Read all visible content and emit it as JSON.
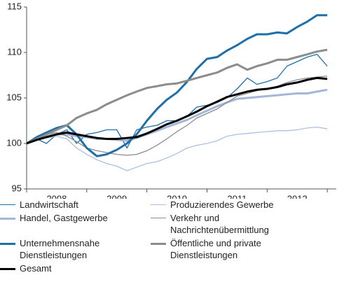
{
  "chart_data": {
    "type": "line",
    "x": [
      2008,
      2008.17,
      2008.33,
      2008.5,
      2008.67,
      2008.83,
      2009,
      2009.17,
      2009.33,
      2009.5,
      2009.67,
      2009.83,
      2010,
      2010.17,
      2010.33,
      2010.5,
      2010.67,
      2010.83,
      2011,
      2011.17,
      2011.33,
      2011.5,
      2011.67,
      2011.83,
      2012,
      2012.17,
      2012.33,
      2012.5,
      2012.67,
      2012.83,
      2013
    ],
    "xlim": [
      2008,
      2013.15
    ],
    "xticks": [
      {
        "value": 2008.5,
        "label": "2008"
      },
      {
        "value": 2009.5,
        "label": "2009"
      },
      {
        "value": 2010.5,
        "label": "2010"
      },
      {
        "value": 2011.5,
        "label": "2011"
      },
      {
        "value": 2012.5,
        "label": "2012"
      }
    ],
    "xminorticks": [
      2008,
      2009,
      2010,
      2011,
      2012,
      2013
    ],
    "ylim": [
      95,
      115
    ],
    "yticks": [
      95,
      100,
      105,
      110,
      115
    ],
    "grid": false,
    "series": [
      {
        "name": "Landwirtschaft",
        "color": "#1f6fa8",
        "line_width": 1.3,
        "values": [
          100,
          100.5,
          100,
          101,
          101.5,
          100,
          101,
          101.2,
          101.5,
          101.5,
          99.5,
          101.5,
          101.8,
          102,
          102.5,
          102.5,
          103,
          104,
          104.2,
          104.5,
          105,
          106,
          107.2,
          106.5,
          106.8,
          107.2,
          108.5,
          109,
          109.5,
          109.8,
          108.5
        ]
      },
      {
        "name": "Produzierendes Gewerbe",
        "color": "#a9c0e4",
        "line_width": 1.3,
        "values": [
          100,
          100.4,
          100.6,
          100.8,
          100.5,
          99.5,
          98.8,
          98.2,
          97.8,
          97.5,
          97.0,
          97.4,
          97.8,
          98.0,
          98.4,
          98.9,
          99.5,
          99.8,
          100.0,
          100.3,
          100.8,
          101.0,
          101.1,
          101.2,
          101.3,
          101.4,
          101.4,
          101.5,
          101.7,
          101.8,
          101.6
        ]
      },
      {
        "name": "Handel, Gastgewerbe",
        "color": "#a3b8d8",
        "line_width": 3,
        "values": [
          100,
          100.5,
          100.8,
          101,
          101,
          100.8,
          100.7,
          100.5,
          100.5,
          100.4,
          100.3,
          100.6,
          101.0,
          101.4,
          101.8,
          102.2,
          102.6,
          103.1,
          103.6,
          104.1,
          104.5,
          104.9,
          105.0,
          105.1,
          105.2,
          105.3,
          105.4,
          105.5,
          105.5,
          105.7,
          105.9
        ]
      },
      {
        "name": "Verkehr und Nachrichtenübermittlung",
        "color": "#8c8c8c",
        "line_width": 1.3,
        "values": [
          100,
          100.5,
          101,
          101.2,
          100.8,
          100.2,
          99.5,
          99.2,
          99.0,
          98.8,
          98.7,
          98.8,
          99.2,
          99.8,
          100.5,
          101.3,
          102.0,
          102.8,
          103.3,
          103.8,
          104.5,
          105.2,
          105.5,
          105.8,
          106.0,
          106.3,
          106.7,
          107.0,
          107.2,
          107.3,
          107.4
        ]
      },
      {
        "name": "Unternehmensnahe Dienstleistungen",
        "color": "#1f6fa8",
        "line_width": 3,
        "values": [
          100,
          100.7,
          101.2,
          101.7,
          102.0,
          101.0,
          99.5,
          98.6,
          98.8,
          99.3,
          100.0,
          101.0,
          102.5,
          103.8,
          104.8,
          105.6,
          106.8,
          108.2,
          109.3,
          109.5,
          110.2,
          110.8,
          111.5,
          112.0,
          112.0,
          112.2,
          112.1,
          112.8,
          113.4,
          114.1,
          114.1
        ]
      },
      {
        "name": "Öffentliche und private Dienstleistungen",
        "color": "#8c8c8c",
        "line_width": 3,
        "values": [
          100,
          100.5,
          101,
          101.5,
          102,
          102.8,
          103.3,
          103.7,
          104.3,
          104.8,
          105.3,
          105.7,
          106.1,
          106.3,
          106.5,
          106.6,
          106.9,
          107.2,
          107.5,
          107.8,
          108.3,
          108.7,
          108.1,
          108.5,
          108.8,
          109.2,
          109.2,
          109.5,
          109.8,
          110.1,
          110.3
        ]
      },
      {
        "name": "Gesamt",
        "color": "#000000",
        "line_width": 3,
        "values": [
          100,
          100.4,
          100.7,
          101.0,
          101.2,
          101.0,
          100.8,
          100.6,
          100.5,
          100.5,
          100.6,
          100.7,
          101.1,
          101.6,
          102.1,
          102.5,
          103.0,
          103.5,
          104.1,
          104.6,
          105.1,
          105.4,
          105.7,
          105.9,
          106.0,
          106.2,
          106.5,
          106.7,
          107.0,
          107.2,
          107.1
        ]
      }
    ]
  }
}
